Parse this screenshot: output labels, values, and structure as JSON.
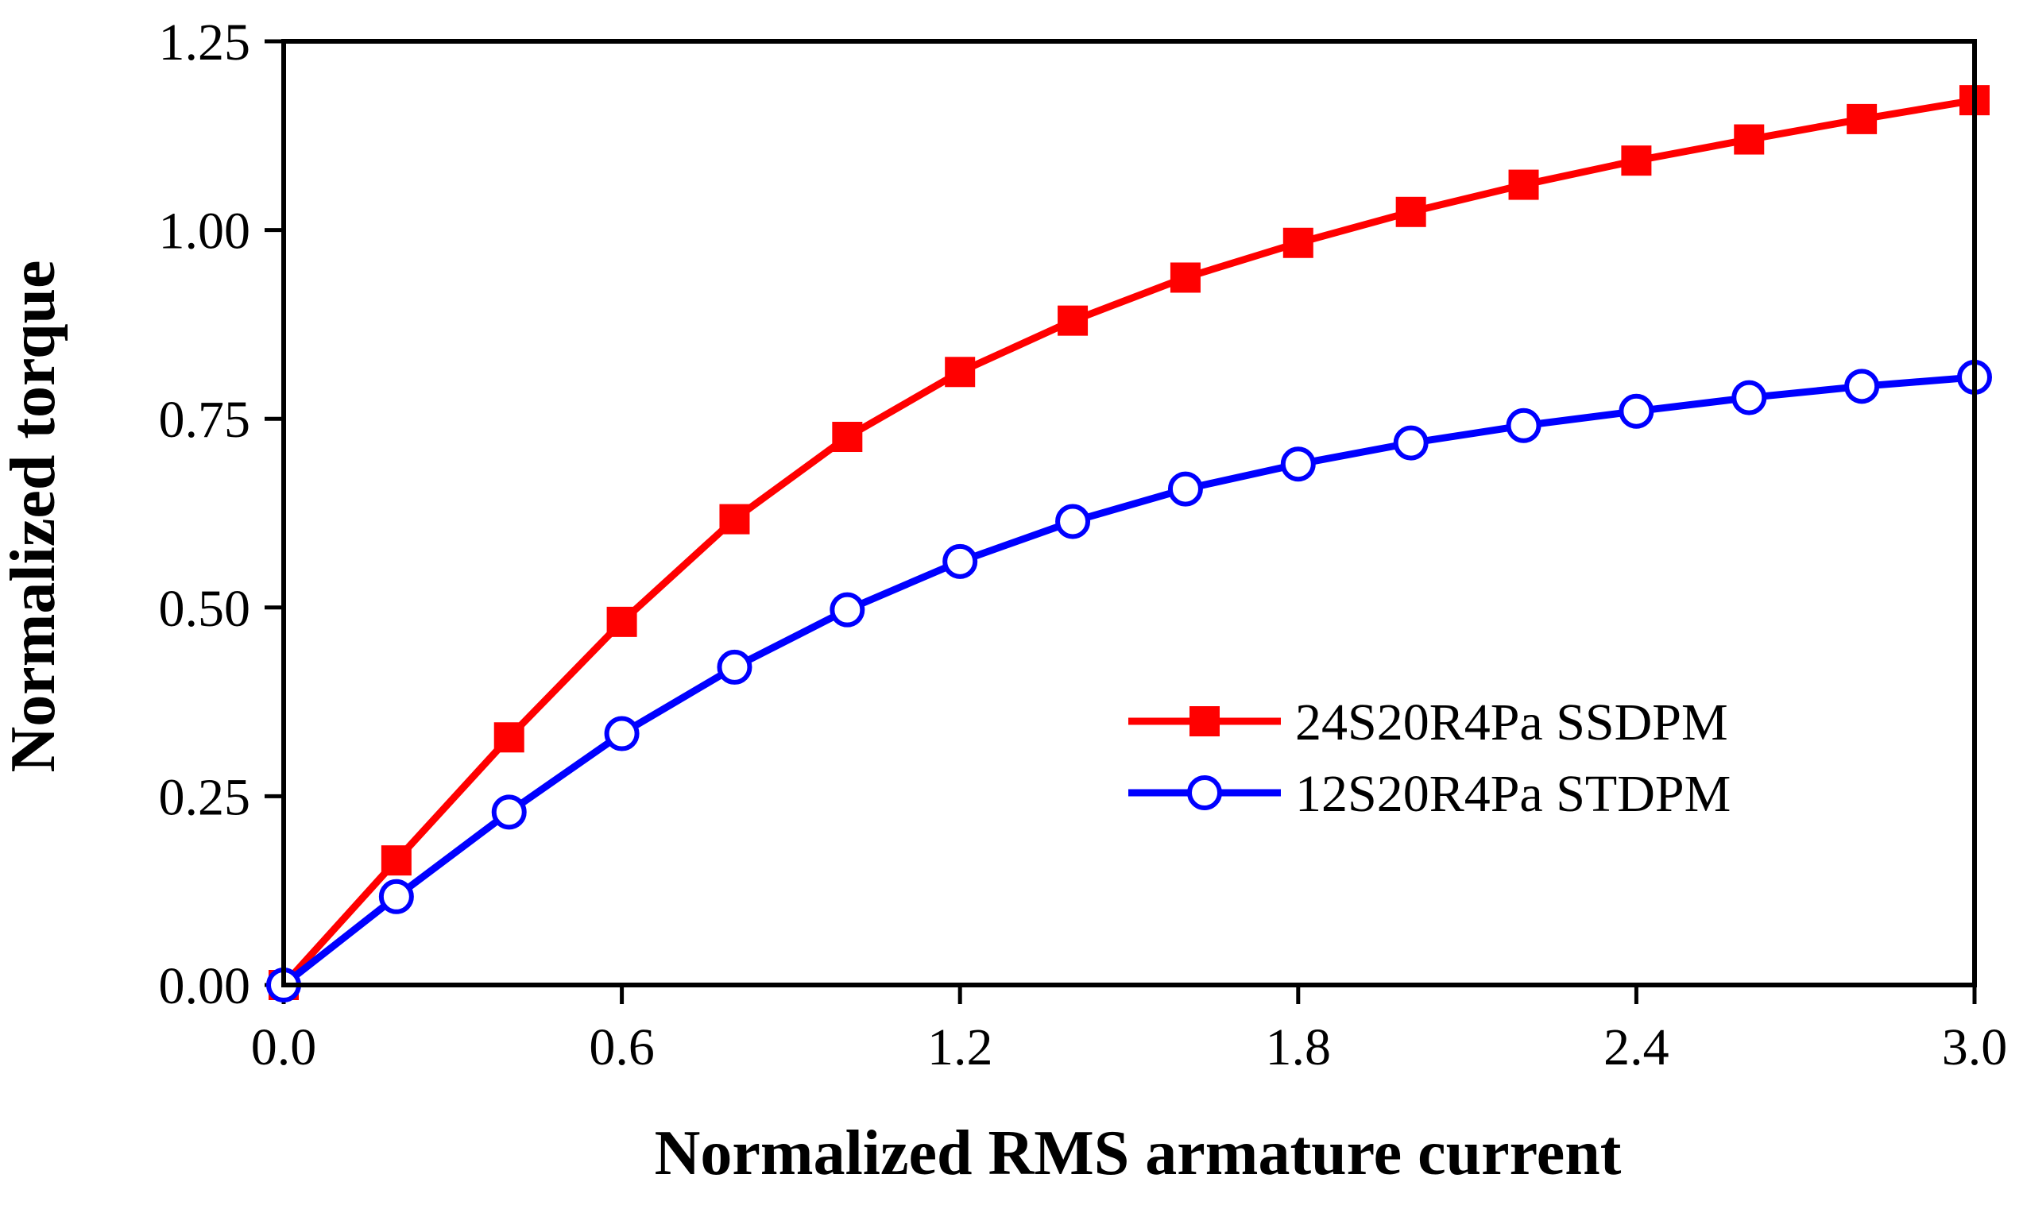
{
  "chart_data": {
    "type": "line",
    "xlabel": "Normalized RMS armature current",
    "ylabel": "Normalized torque",
    "xlim": [
      0.0,
      3.0
    ],
    "ylim": [
      0.0,
      1.25
    ],
    "xticks": [
      "0.0",
      "0.6",
      "1.2",
      "1.8",
      "2.4",
      "3.0"
    ],
    "yticks": [
      "0.00",
      "0.25",
      "0.50",
      "0.75",
      "1.00",
      "1.25"
    ],
    "legend_position": "center-right",
    "x": [
      0.0,
      0.2,
      0.4,
      0.6,
      0.8,
      1.0,
      1.2,
      1.4,
      1.6,
      1.8,
      2.0,
      2.2,
      2.4,
      2.6,
      2.8,
      3.0
    ],
    "series": [
      {
        "name": "24S20R4Pa SSDPM",
        "color": "#ff0000",
        "marker": "filled-square",
        "values": [
          0.0,
          0.165,
          0.328,
          0.481,
          0.617,
          0.726,
          0.812,
          0.88,
          0.937,
          0.983,
          1.024,
          1.06,
          1.092,
          1.12,
          1.147,
          1.172
        ]
      },
      {
        "name": "12S20R4Pa STDPM",
        "color": "#0000ff",
        "marker": "open-circle",
        "values": [
          0.0,
          0.117,
          0.229,
          0.333,
          0.421,
          0.497,
          0.561,
          0.614,
          0.657,
          0.69,
          0.718,
          0.741,
          0.76,
          0.778,
          0.793,
          0.805
        ]
      }
    ]
  }
}
